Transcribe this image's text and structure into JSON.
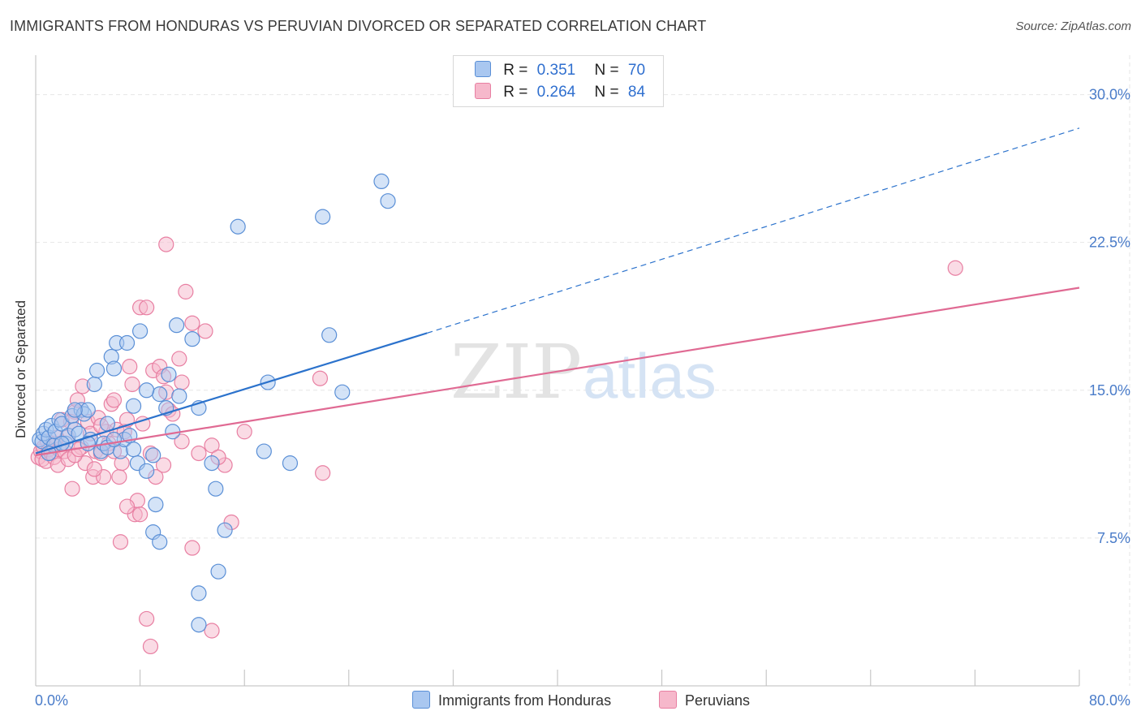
{
  "header": {
    "title": "IMMIGRANTS FROM HONDURAS VS PERUVIAN DIVORCED OR SEPARATED CORRELATION CHART",
    "source": "Source: ZipAtlas.com"
  },
  "legend_top": {
    "rows": [
      {
        "r_label": "R =",
        "r_value": "0.351",
        "n_label": "N =",
        "n_value": "70"
      },
      {
        "r_label": "R =",
        "r_value": "0.264",
        "n_label": "N =",
        "n_value": "84"
      }
    ]
  },
  "legend_bottom": {
    "items": [
      "Immigrants from Honduras",
      "Peruvians"
    ]
  },
  "watermark": {
    "zip": "ZIP",
    "atlas": "atlas"
  },
  "colors": {
    "blue_fill": "#a9c7f0",
    "blue_stroke": "#5a8fd6",
    "blue_line": "#2b72cc",
    "pink_fill": "#f6b8cb",
    "pink_stroke": "#e87fa2",
    "pink_line": "#e06a93",
    "tick_text": "#4a7cc9",
    "grid": "#e6e6e6"
  },
  "chart_data": {
    "type": "scatter",
    "title": "IMMIGRANTS FROM HONDURAS VS PERUVIAN DIVORCED OR SEPARATED CORRELATION CHART",
    "xlabel": "",
    "ylabel": "Divorced or Separated",
    "xlim": [
      0,
      80
    ],
    "ylim": [
      0,
      32
    ],
    "x_tick_labels": [
      "0.0%",
      "80.0%"
    ],
    "y_tick_values": [
      7.5,
      15.0,
      22.5,
      30.0
    ],
    "y_tick_labels": [
      "7.5%",
      "15.0%",
      "22.5%",
      "30.0%"
    ],
    "grid": true,
    "legend_position": "top-center",
    "series": [
      {
        "name": "Immigrants from Honduras",
        "color": "#a9c7f0",
        "R": 0.351,
        "N": 70,
        "trend": {
          "x": [
            0,
            30
          ],
          "y": [
            11.8,
            17.9
          ],
          "dashed_extension": {
            "x": [
              30,
              80
            ],
            "y": [
              17.9,
              28.3
            ]
          }
        },
        "points": [
          [
            0.3,
            12.5
          ],
          [
            0.5,
            12.4
          ],
          [
            0.6,
            12.8
          ],
          [
            0.8,
            13.0
          ],
          [
            1.0,
            12.6
          ],
          [
            1.2,
            13.2
          ],
          [
            1.4,
            12.2
          ],
          [
            1.5,
            12.9
          ],
          [
            1.8,
            13.5
          ],
          [
            2.0,
            13.3
          ],
          [
            2.3,
            12.3
          ],
          [
            2.5,
            12.7
          ],
          [
            2.8,
            13.7
          ],
          [
            3.0,
            13.0
          ],
          [
            3.3,
            12.8
          ],
          [
            3.5,
            14.0
          ],
          [
            3.7,
            13.8
          ],
          [
            4.0,
            14.0
          ],
          [
            4.2,
            12.5
          ],
          [
            4.5,
            15.3
          ],
          [
            4.7,
            16.0
          ],
          [
            5.0,
            11.9
          ],
          [
            5.2,
            12.3
          ],
          [
            5.5,
            12.1
          ],
          [
            5.8,
            16.7
          ],
          [
            6.0,
            16.1
          ],
          [
            6.2,
            17.4
          ],
          [
            6.5,
            11.9
          ],
          [
            6.8,
            12.5
          ],
          [
            7.0,
            17.4
          ],
          [
            7.2,
            12.7
          ],
          [
            7.5,
            14.2
          ],
          [
            7.8,
            11.3
          ],
          [
            8.0,
            18.0
          ],
          [
            8.5,
            10.9
          ],
          [
            9.0,
            11.7
          ],
          [
            9.2,
            9.2
          ],
          [
            9.5,
            14.8
          ],
          [
            10.0,
            14.1
          ],
          [
            10.2,
            15.8
          ],
          [
            10.8,
            18.3
          ],
          [
            11.0,
            14.7
          ],
          [
            12.0,
            17.6
          ],
          [
            12.5,
            14.1
          ],
          [
            13.5,
            11.3
          ],
          [
            13.8,
            10.0
          ],
          [
            14.5,
            7.9
          ],
          [
            15.5,
            23.3
          ],
          [
            17.5,
            11.9
          ],
          [
            17.8,
            15.4
          ],
          [
            19.5,
            11.3
          ],
          [
            22.0,
            23.8
          ],
          [
            22.5,
            17.8
          ],
          [
            23.5,
            14.9
          ],
          [
            26.5,
            25.6
          ],
          [
            27.0,
            24.6
          ],
          [
            9.0,
            7.8
          ],
          [
            9.5,
            7.3
          ],
          [
            12.5,
            4.7
          ],
          [
            12.5,
            3.1
          ],
          [
            14.0,
            5.8
          ],
          [
            7.5,
            12.0
          ],
          [
            4.0,
            12.3
          ],
          [
            3.0,
            14.0
          ],
          [
            2.0,
            12.3
          ],
          [
            1.0,
            11.8
          ],
          [
            6.0,
            12.5
          ],
          [
            5.5,
            13.3
          ],
          [
            8.5,
            15.0
          ],
          [
            10.5,
            12.9
          ]
        ]
      },
      {
        "name": "Peruvians",
        "color": "#f6b8cb",
        "R": 0.264,
        "N": 84,
        "trend": {
          "x": [
            0,
            80
          ],
          "y": [
            11.7,
            20.2
          ]
        },
        "points": [
          [
            0.2,
            11.6
          ],
          [
            0.4,
            11.9
          ],
          [
            0.5,
            11.5
          ],
          [
            0.6,
            12.1
          ],
          [
            0.8,
            11.4
          ],
          [
            1.0,
            12.0
          ],
          [
            1.2,
            11.8
          ],
          [
            1.4,
            11.6
          ],
          [
            1.5,
            12.3
          ],
          [
            1.7,
            11.2
          ],
          [
            1.8,
            12.0
          ],
          [
            2.0,
            13.5
          ],
          [
            2.2,
            11.9
          ],
          [
            2.4,
            12.6
          ],
          [
            2.5,
            11.5
          ],
          [
            2.8,
            10.0
          ],
          [
            3.0,
            13.9
          ],
          [
            3.2,
            14.5
          ],
          [
            3.5,
            12.1
          ],
          [
            3.6,
            15.2
          ],
          [
            3.8,
            11.3
          ],
          [
            4.0,
            13.4
          ],
          [
            4.2,
            12.8
          ],
          [
            4.4,
            10.6
          ],
          [
            4.6,
            11.9
          ],
          [
            4.8,
            13.6
          ],
          [
            5.0,
            11.8
          ],
          [
            5.2,
            10.6
          ],
          [
            5.4,
            12.9
          ],
          [
            5.6,
            12.3
          ],
          [
            5.8,
            14.3
          ],
          [
            6.0,
            11.9
          ],
          [
            6.2,
            13.0
          ],
          [
            6.4,
            10.6
          ],
          [
            6.6,
            11.3
          ],
          [
            6.8,
            12.9
          ],
          [
            7.0,
            13.5
          ],
          [
            7.2,
            16.2
          ],
          [
            7.4,
            15.3
          ],
          [
            7.6,
            8.7
          ],
          [
            7.8,
            9.4
          ],
          [
            8.0,
            19.2
          ],
          [
            8.2,
            13.3
          ],
          [
            8.5,
            19.2
          ],
          [
            8.8,
            11.8
          ],
          [
            9.0,
            16.0
          ],
          [
            9.2,
            10.6
          ],
          [
            9.5,
            16.2
          ],
          [
            9.8,
            15.7
          ],
          [
            10.0,
            14.9
          ],
          [
            10.2,
            14.0
          ],
          [
            10.5,
            13.8
          ],
          [
            11.0,
            16.6
          ],
          [
            11.2,
            12.4
          ],
          [
            11.5,
            20.0
          ],
          [
            12.0,
            18.4
          ],
          [
            12.5,
            11.8
          ],
          [
            13.0,
            18.0
          ],
          [
            13.5,
            12.2
          ],
          [
            14.5,
            11.2
          ],
          [
            15.0,
            8.3
          ],
          [
            16.0,
            12.9
          ],
          [
            10.0,
            22.4
          ],
          [
            9.8,
            11.2
          ],
          [
            12.0,
            7.0
          ],
          [
            13.5,
            2.8
          ],
          [
            8.5,
            3.4
          ],
          [
            8.8,
            2.0
          ],
          [
            6.5,
            7.3
          ],
          [
            7.0,
            9.1
          ],
          [
            8.0,
            8.7
          ],
          [
            11.2,
            15.4
          ],
          [
            14.0,
            11.6
          ],
          [
            21.8,
            15.6
          ],
          [
            22.0,
            10.8
          ],
          [
            70.5,
            21.2
          ],
          [
            3.0,
            11.7
          ],
          [
            4.5,
            11.0
          ],
          [
            2.7,
            13.4
          ],
          [
            1.6,
            12.6
          ],
          [
            6.0,
            14.5
          ],
          [
            5.0,
            13.2
          ],
          [
            3.3,
            12.0
          ],
          [
            0.9,
            12.4
          ]
        ]
      }
    ]
  }
}
